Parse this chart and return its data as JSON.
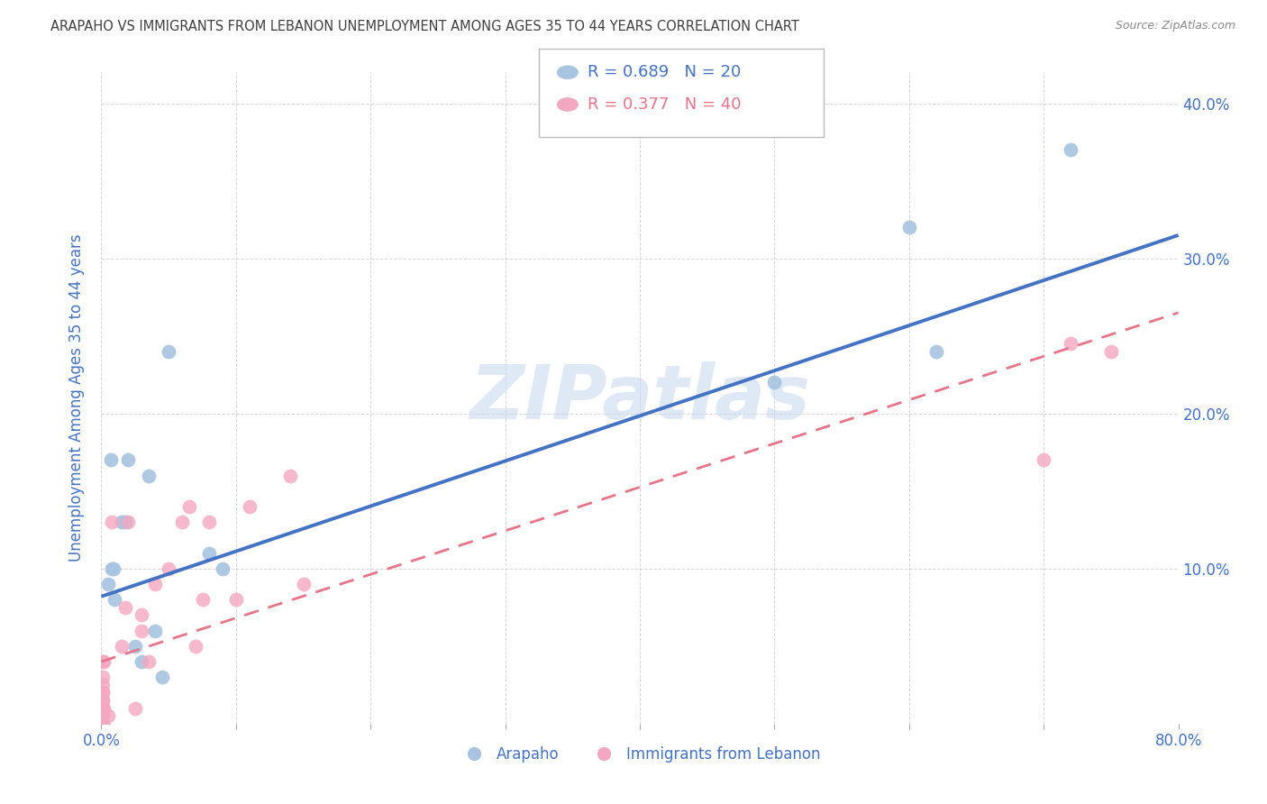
{
  "title": "ARAPAHO VS IMMIGRANTS FROM LEBANON UNEMPLOYMENT AMONG AGES 35 TO 44 YEARS CORRELATION CHART",
  "source": "Source: ZipAtlas.com",
  "ylabel": "Unemployment Among Ages 35 to 44 years",
  "xlabel_label_arapaho": "Arapaho",
  "xlabel_label_lebanon": "Immigrants from Lebanon",
  "xlim": [
    0.0,
    0.8
  ],
  "ylim": [
    0.0,
    0.42
  ],
  "xticks": [
    0.0,
    0.1,
    0.2,
    0.3,
    0.4,
    0.5,
    0.6,
    0.7,
    0.8
  ],
  "xticklabels": [
    "0.0%",
    "",
    "",
    "",
    "",
    "",
    "",
    "",
    "80.0%"
  ],
  "yticks": [
    0.0,
    0.1,
    0.2,
    0.3,
    0.4
  ],
  "yticklabels": [
    "",
    "10.0%",
    "20.0%",
    "30.0%",
    "40.0%"
  ],
  "arapaho_color": "#a8c4e0",
  "lebanon_color": "#f4a7c0",
  "arapaho_line_color": "#4472c4",
  "lebanon_line_color": "#e8748a",
  "legend_r_arapaho": "R = 0.689",
  "legend_n_arapaho": "N = 20",
  "legend_r_lebanon": "R = 0.377",
  "legend_n_lebanon": "N = 40",
  "title_color": "#404040",
  "axis_label_color": "#4472c4",
  "watermark_color": "#c5d8ef",
  "watermark_text": "ZIPatlas",
  "arapaho_x": [
    0.005,
    0.007,
    0.008,
    0.009,
    0.01,
    0.015,
    0.018,
    0.02,
    0.025,
    0.03,
    0.035,
    0.04,
    0.045,
    0.05,
    0.08,
    0.09,
    0.5,
    0.6,
    0.62,
    0.72
  ],
  "arapaho_y": [
    0.09,
    0.17,
    0.1,
    0.1,
    0.08,
    0.13,
    0.13,
    0.17,
    0.05,
    0.04,
    0.16,
    0.06,
    0.03,
    0.24,
    0.11,
    0.1,
    0.22,
    0.32,
    0.24,
    0.37
  ],
  "lebanon_x": [
    0.001,
    0.001,
    0.001,
    0.001,
    0.001,
    0.001,
    0.001,
    0.001,
    0.001,
    0.001,
    0.001,
    0.001,
    0.001,
    0.001,
    0.001,
    0.002,
    0.002,
    0.005,
    0.008,
    0.015,
    0.018,
    0.02,
    0.025,
    0.03,
    0.03,
    0.035,
    0.04,
    0.05,
    0.06,
    0.065,
    0.07,
    0.075,
    0.08,
    0.1,
    0.11,
    0.14,
    0.15,
    0.7,
    0.72,
    0.75
  ],
  "lebanon_y": [
    0.0,
    0.0,
    0.0,
    0.0,
    0.005,
    0.005,
    0.01,
    0.01,
    0.015,
    0.015,
    0.02,
    0.02,
    0.025,
    0.03,
    0.04,
    0.01,
    0.04,
    0.005,
    0.13,
    0.05,
    0.075,
    0.13,
    0.01,
    0.06,
    0.07,
    0.04,
    0.09,
    0.1,
    0.13,
    0.14,
    0.05,
    0.08,
    0.13,
    0.08,
    0.14,
    0.16,
    0.09,
    0.17,
    0.245,
    0.24
  ],
  "background_color": "#ffffff",
  "grid_color": "#cccccc",
  "ara_line_x0": 0.0,
  "ara_line_y0": 0.082,
  "ara_line_x1": 0.8,
  "ara_line_y1": 0.315,
  "leb_line_x0": 0.0,
  "leb_line_y0": 0.04,
  "leb_line_x1": 0.8,
  "leb_line_y1": 0.265
}
